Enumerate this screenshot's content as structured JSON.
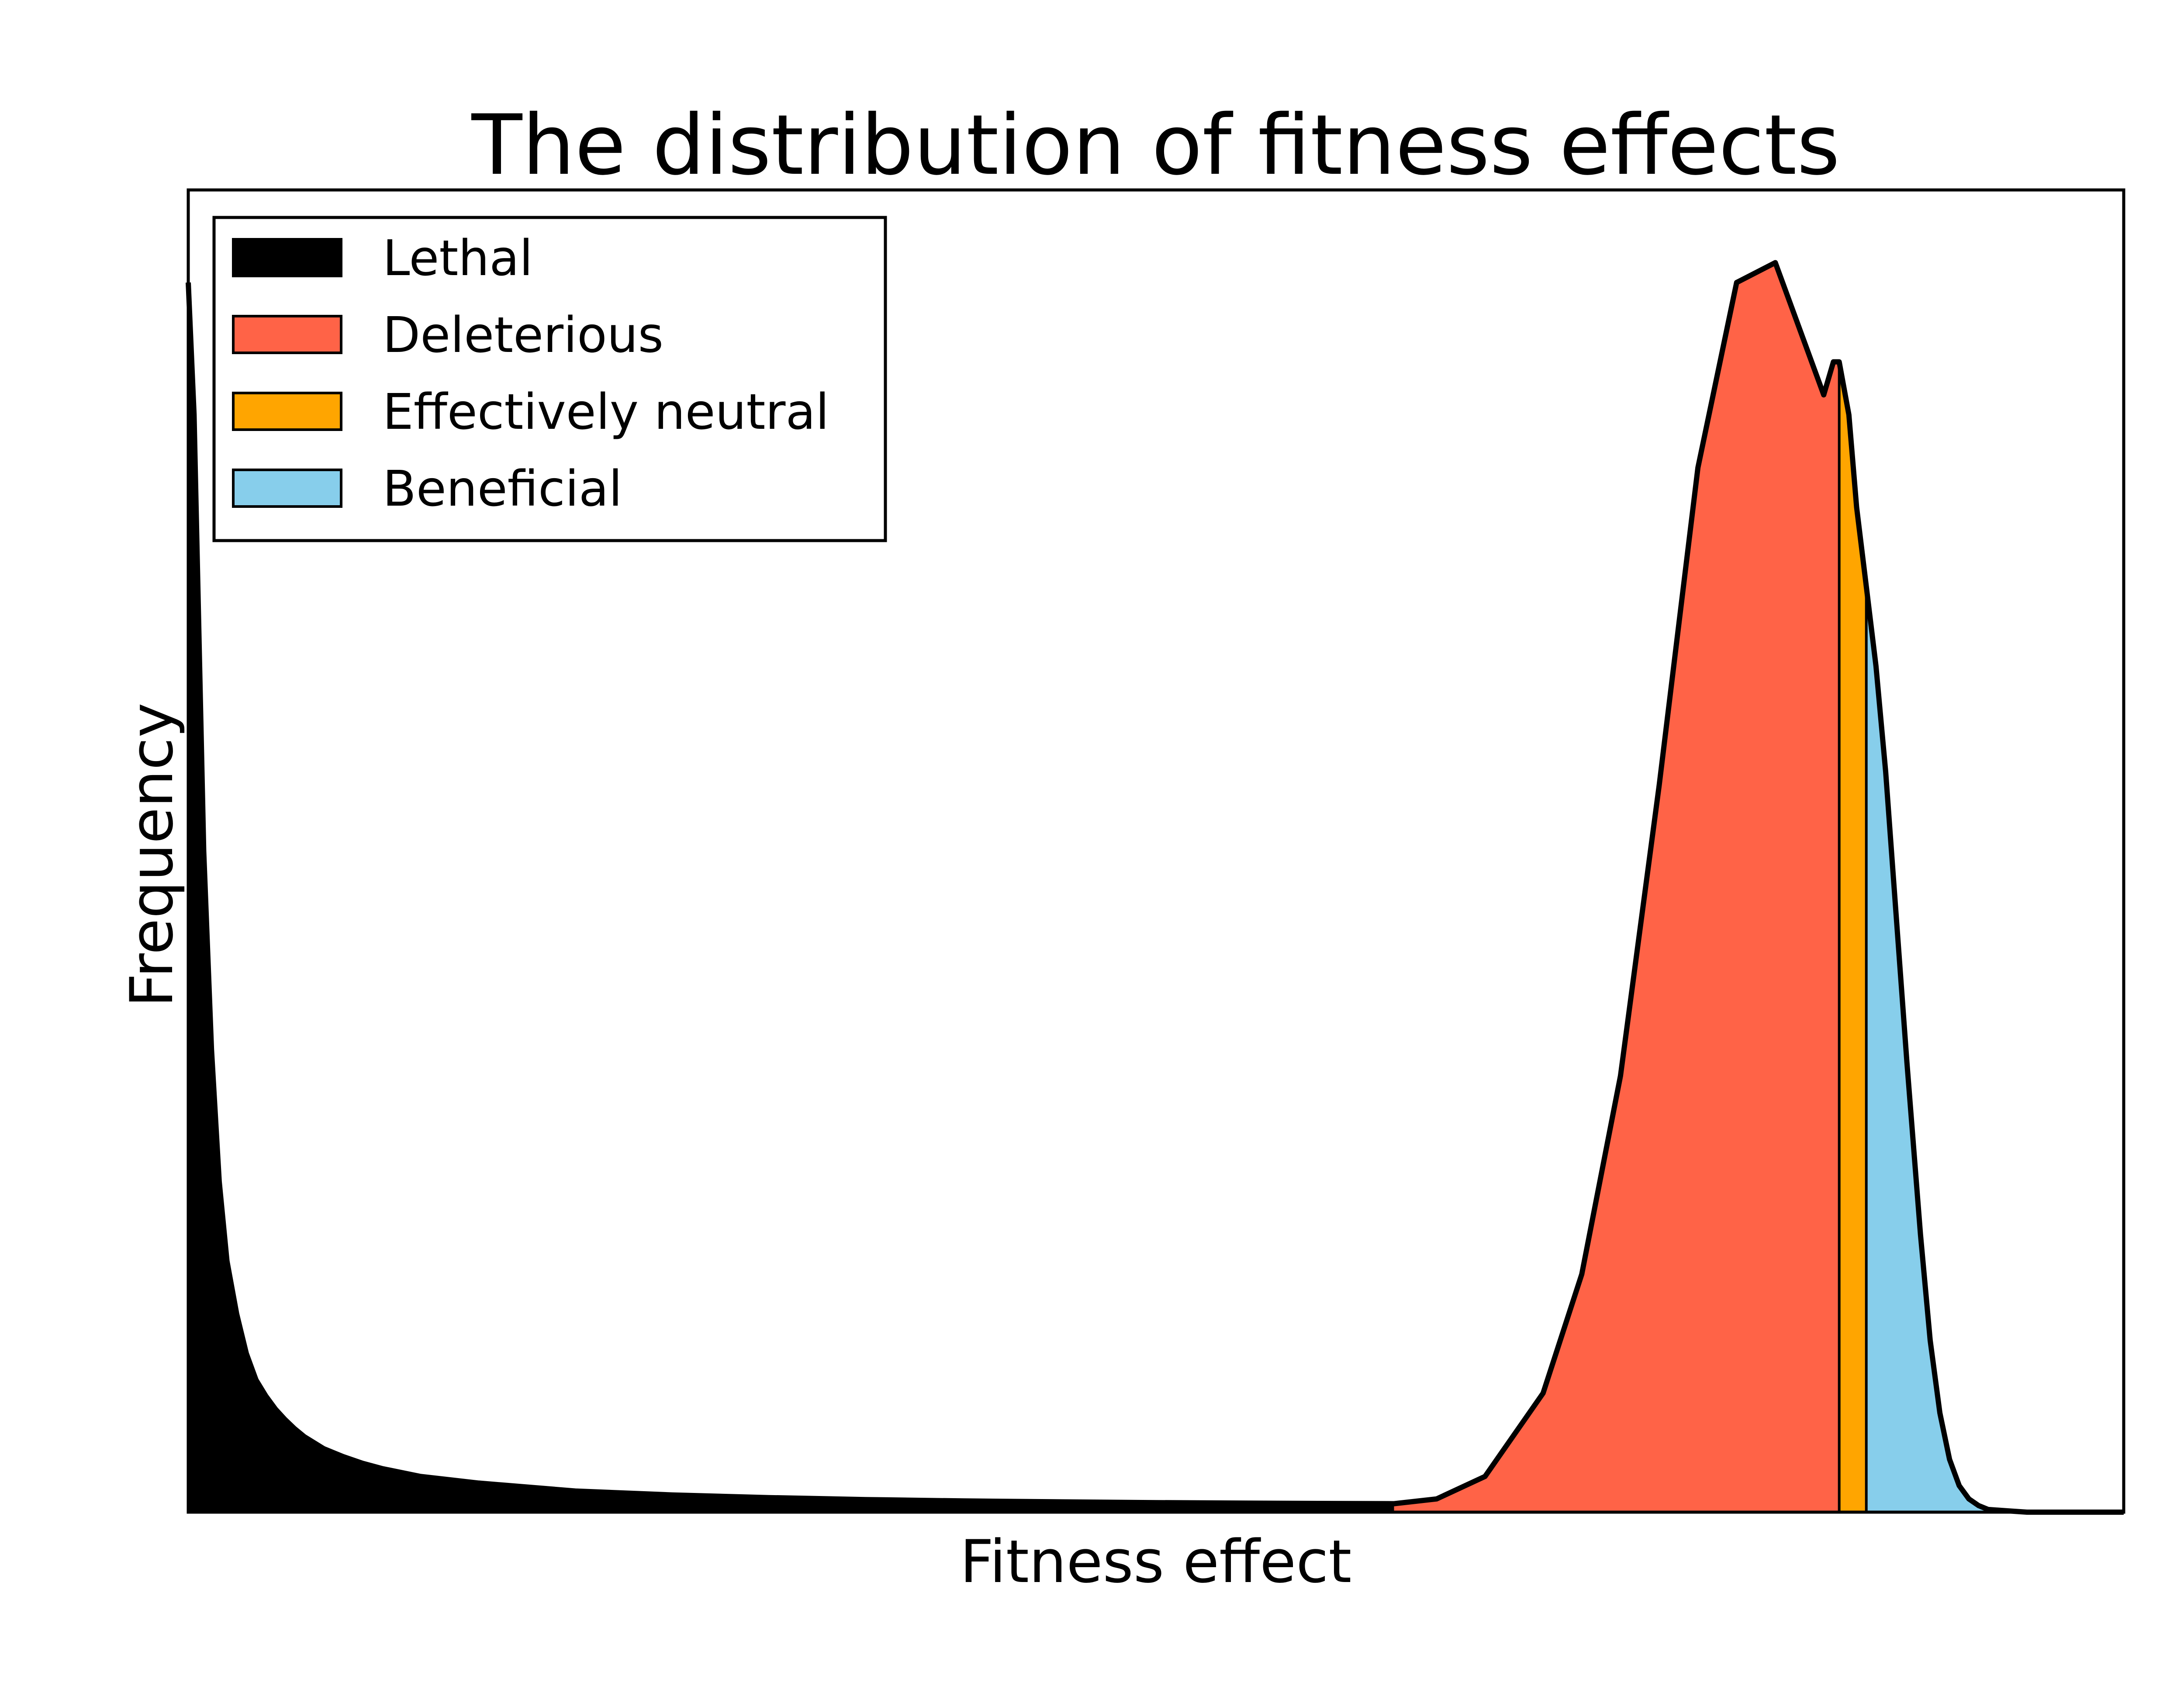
{
  "chart_data": {
    "type": "area",
    "title": "The distribution of fitness effects",
    "xlabel": "Fitness effect",
    "ylabel": "Frequency",
    "xlim": [
      0,
      1
    ],
    "ylim": [
      0,
      1
    ],
    "xticks": [],
    "yticks": [],
    "grid": false,
    "legend_position": "top-left",
    "series": [
      {
        "name": "Lethal",
        "color": "#000000",
        "x": [
          0,
          0.003,
          0.008,
          0.012,
          0.016,
          0.02,
          0.025,
          0.03,
          0.035,
          0.04,
          0.045,
          0.05,
          0.055,
          0.06,
          0.07,
          0.08,
          0.09,
          0.1,
          0.12,
          0.15,
          0.2,
          0.25,
          0.3,
          0.35,
          0.4,
          0.45,
          0.5,
          0.55,
          0.6,
          0.623
        ],
        "y": [
          0.93,
          0.83,
          0.5,
          0.35,
          0.25,
          0.19,
          0.15,
          0.12,
          0.1,
          0.088,
          0.078,
          0.07,
          0.063,
          0.057,
          0.048,
          0.042,
          0.037,
          0.033,
          0.027,
          0.022,
          0.016,
          0.013,
          0.011,
          0.0095,
          0.0085,
          0.0078,
          0.0072,
          0.0068,
          0.0065,
          0.0064
        ]
      },
      {
        "name": "Deleterious",
        "color": "#ff6347",
        "x": [
          0.623,
          0.645,
          0.67,
          0.7,
          0.72,
          0.74,
          0.76,
          0.78,
          0.8,
          0.82,
          0.835,
          0.845,
          0.85,
          0.853
        ],
        "y": [
          0.0064,
          0.01,
          0.027,
          0.09,
          0.18,
          0.33,
          0.55,
          0.79,
          0.93,
          0.945,
          0.885,
          0.845,
          0.87,
          0.87
        ]
      },
      {
        "name": "Effectively neutral",
        "color": "#ffa500",
        "x": [
          0.853,
          0.858,
          0.862,
          0.867
        ],
        "y": [
          0.87,
          0.83,
          0.76,
          0.7
        ]
      },
      {
        "name": "Beneficial",
        "color": "#87ceeb",
        "x": [
          0.867,
          0.872,
          0.877,
          0.882,
          0.888,
          0.895,
          0.9,
          0.905,
          0.91,
          0.915,
          0.92,
          0.925,
          0.93,
          0.94,
          0.95,
          1.0
        ],
        "y": [
          0.7,
          0.64,
          0.56,
          0.46,
          0.34,
          0.21,
          0.13,
          0.075,
          0.04,
          0.02,
          0.01,
          0.005,
          0.002,
          0.001,
          0.0,
          0.0
        ]
      }
    ]
  }
}
